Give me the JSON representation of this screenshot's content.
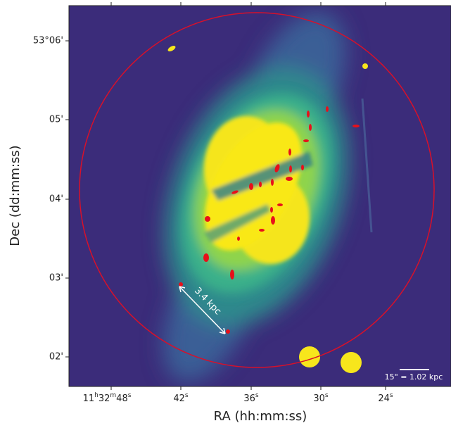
{
  "figure": {
    "x_label": "RA (hh:mm:ss)",
    "y_label": "Dec (dd:mm:ss)",
    "x_ticks": [
      "11h32m48s",
      "42s",
      "36s",
      "30s",
      "24s"
    ],
    "y_ticks": [
      "53°06'",
      "05'",
      "04'",
      "03'",
      "02'"
    ],
    "arrow_label": "3.4 kpc",
    "scale_bar_label": "15\" = 1.02 kpc"
  }
}
